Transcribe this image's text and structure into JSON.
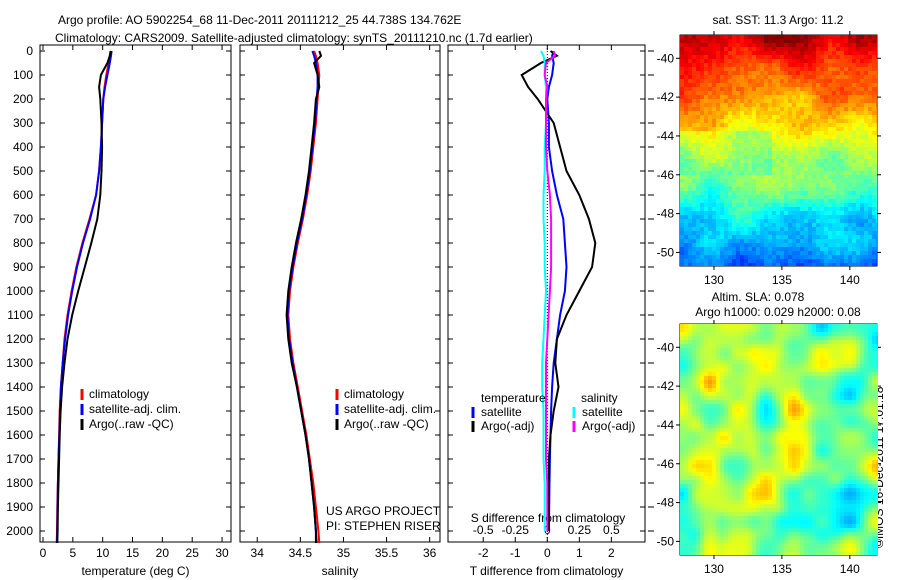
{
  "title": {
    "line1": "Argo profile: AO 5902254_68 11-Dec-2011 20111212_25 44.738S 134.762E",
    "line2": "Climatology: CARS2009. Satellite-adjusted climatology: synTS_20111210.nc (1.7d earlier)"
  },
  "colors": {
    "climatology": "#ff0000",
    "satellite": "#0000ff",
    "argo": "#000000",
    "sal_satellite": "#00ffff",
    "sal_argo": "#ff00ff"
  },
  "chart_data": [
    {
      "type": "line",
      "id": "temperature",
      "xlabel": "temperature (deg C)",
      "ylabel": "",
      "xlim": [
        -0.5,
        31.5
      ],
      "ylim": [
        2060,
        0
      ],
      "xticks": [
        "0",
        "5",
        "10",
        "15",
        "20",
        "25",
        "30"
      ],
      "xtick_values": [
        0,
        5,
        10,
        15,
        20,
        25,
        30
      ],
      "yticks": [
        "0",
        "100",
        "200",
        "300",
        "400",
        "500",
        "600",
        "700",
        "800",
        "900",
        "1000",
        "1100",
        "1200",
        "1300",
        "1400",
        "1500",
        "1600",
        "1700",
        "1800",
        "1900",
        "2000"
      ],
      "legend": [
        "climatology",
        "satellite-adj. clim.",
        "Argo(..raw -QC)"
      ],
      "legend_position": "lower-left",
      "depth": [
        0,
        20,
        50,
        100,
        150,
        200,
        300,
        400,
        500,
        600,
        700,
        800,
        900,
        1000,
        1100,
        1200,
        1300,
        1400,
        1500,
        1600,
        1700,
        1800,
        1900,
        2000,
        2050
      ],
      "series": [
        {
          "name": "climatology",
          "values": [
            11.3,
            11.2,
            11.0,
            10.6,
            10.3,
            10.1,
            9.9,
            9.7,
            9.4,
            8.9,
            7.8,
            6.6,
            5.6,
            4.8,
            4.1,
            3.6,
            3.3,
            3.0,
            2.8,
            2.7,
            2.6,
            2.5,
            2.4,
            2.35,
            2.3
          ]
        },
        {
          "name": "satellite-adj. clim.",
          "values": [
            11.5,
            11.4,
            11.2,
            10.8,
            10.4,
            10.1,
            9.9,
            9.7,
            9.4,
            8.9,
            7.9,
            6.7,
            5.7,
            4.9,
            4.2,
            3.7,
            3.3,
            3.0,
            2.85,
            2.75,
            2.6,
            2.5,
            2.45,
            2.4,
            2.35
          ]
        },
        {
          "name": "Argo(..raw -QC)",
          "values": [
            11.4,
            11.2,
            10.8,
            9.7,
            9.4,
            9.6,
            9.8,
            9.9,
            9.8,
            9.6,
            9.1,
            8.1,
            7.0,
            5.9,
            4.9,
            4.1,
            3.6,
            3.2,
            2.95,
            2.8,
            2.7,
            2.6,
            2.5,
            2.45,
            2.4
          ]
        }
      ]
    },
    {
      "type": "line",
      "id": "salinity",
      "xlabel": "salinity",
      "xlim": [
        33.8,
        36.12
      ],
      "ylim": [
        2060,
        0
      ],
      "xticks": [
        "34",
        "34.5",
        "35",
        "35.5",
        "36"
      ],
      "xtick_values": [
        34,
        34.5,
        35,
        35.5,
        36
      ],
      "legend": [
        "climatology",
        "satellite-adj. clim.",
        "Argo(..raw -QC)"
      ],
      "legend_position": "lower-right",
      "annotation": [
        "US ARGO PROJECT",
        "PI: STEPHEN RISER"
      ],
      "depth": [
        0,
        20,
        50,
        100,
        150,
        200,
        300,
        400,
        500,
        600,
        700,
        800,
        900,
        1000,
        1100,
        1200,
        1300,
        1400,
        1500,
        1600,
        1700,
        1800,
        1900,
        2000,
        2050
      ],
      "series": [
        {
          "name": "climatology",
          "values": [
            34.66,
            34.68,
            34.7,
            34.72,
            34.71,
            34.7,
            34.68,
            34.65,
            34.62,
            34.58,
            34.53,
            34.47,
            34.42,
            34.38,
            34.36,
            34.38,
            34.42,
            34.47,
            34.52,
            34.57,
            34.61,
            34.65,
            34.68,
            34.71,
            34.72
          ]
        },
        {
          "name": "satellite-adj. clim.",
          "values": [
            34.64,
            34.66,
            34.68,
            34.7,
            34.7,
            34.69,
            34.67,
            34.64,
            34.61,
            34.57,
            34.52,
            34.46,
            34.41,
            34.37,
            34.35,
            34.37,
            34.41,
            34.46,
            34.51,
            34.56,
            34.6,
            34.63,
            34.66,
            34.68,
            34.69
          ]
        },
        {
          "name": "Argo(..raw -QC)",
          "values": [
            34.72,
            34.74,
            34.66,
            34.7,
            34.72,
            34.68,
            34.66,
            34.63,
            34.6,
            34.56,
            34.51,
            34.45,
            34.4,
            34.36,
            34.34,
            34.36,
            34.4,
            34.46,
            34.51,
            34.56,
            34.6,
            34.63,
            34.66,
            34.68,
            34.68
          ]
        }
      ]
    },
    {
      "type": "line",
      "id": "difference",
      "xlabel": "T difference from climatology",
      "xlabel_top": "S difference from climatology",
      "xlim": [
        -3.1,
        3.05
      ],
      "xticks": [
        "-2",
        "-1",
        "0",
        "1",
        "2"
      ],
      "xtick_values": [
        -2,
        -1,
        0,
        1,
        2
      ],
      "xticks_top": [
        "-0.5",
        "-0.25",
        "0",
        "0.25",
        "0.5"
      ],
      "xtick_top_values": [
        -0.5,
        -0.25,
        0,
        0.25,
        0.5
      ],
      "ylim": [
        2060,
        0
      ],
      "legend_headers": [
        "temperature",
        "salinity"
      ],
      "legend": [
        "satellite",
        "Argo(-adj)",
        "satellite",
        "Argo(-adj)"
      ],
      "legend_position": "lower-center",
      "depth": [
        0,
        20,
        50,
        100,
        150,
        200,
        300,
        400,
        500,
        600,
        700,
        800,
        900,
        1000,
        1100,
        1200,
        1300,
        1400,
        1500,
        1600,
        1700,
        1800,
        1900,
        2000
      ],
      "series": [
        {
          "name": "T satellite",
          "axis": "T",
          "values": [
            0.2,
            0.15,
            0.2,
            0.15,
            0.05,
            0.0,
            0.05,
            0.05,
            0.15,
            0.3,
            0.5,
            0.55,
            0.6,
            0.55,
            0.4,
            0.3,
            0.2,
            0.15,
            0.12,
            0.1,
            0.08,
            0.07,
            0.06,
            0.05
          ]
        },
        {
          "name": "T Argo(-adj)",
          "axis": "T",
          "values": [
            0.1,
            0.3,
            -0.2,
            -0.8,
            -0.6,
            -0.3,
            0.2,
            0.4,
            0.6,
            1.0,
            1.3,
            1.5,
            1.4,
            1.0,
            0.6,
            0.3,
            0.25,
            0.35,
            0.2,
            0.1,
            0.05,
            0.05,
            0.05,
            0.05
          ]
        },
        {
          "name": "S satellite",
          "axis": "S",
          "values": [
            -0.05,
            -0.03,
            -0.02,
            -0.02,
            -0.01,
            -0.01,
            -0.01,
            -0.02,
            -0.02,
            -0.03,
            -0.03,
            -0.02,
            -0.02,
            -0.01,
            -0.02,
            -0.03,
            -0.04,
            -0.04,
            -0.03,
            -0.03,
            -0.03,
            -0.02,
            -0.02,
            -0.02
          ]
        },
        {
          "name": "S Argo(-adj)",
          "axis": "S",
          "values": [
            0.05,
            0.06,
            -0.01,
            -0.02,
            0.0,
            -0.01,
            -0.01,
            -0.01,
            0.0,
            0.02,
            0.03,
            0.03,
            0.03,
            0.02,
            0.01,
            0.0,
            -0.01,
            -0.01,
            -0.01,
            -0.01,
            -0.01,
            0.0,
            0.0,
            0.0
          ]
        }
      ]
    },
    {
      "type": "heatmap",
      "id": "sst-map",
      "title": "sat. SST: 11.3 Argo: 11.2",
      "xlim": [
        127.5,
        142
      ],
      "ylim": [
        -50.7,
        -38.8
      ],
      "xticks": [
        "130",
        "135",
        "140"
      ],
      "xtick_values": [
        130,
        135,
        140
      ],
      "yticks": [
        "-40",
        "-42",
        "-44",
        "-46",
        "-48",
        "-50"
      ],
      "ytick_values": [
        -40,
        -42,
        -44,
        -46,
        -48,
        -50
      ],
      "marker": {
        "lon": 134.762,
        "lat": -44.738
      }
    },
    {
      "type": "heatmap",
      "id": "sla-map",
      "title": "Altim. SLA: 0.078",
      "subtitle": "Argo h1000: 0.029 h2000: 0.08",
      "xlim": [
        127.5,
        142
      ],
      "ylim": [
        -50.7,
        -38.8
      ],
      "xticks": [
        "130",
        "135",
        "140"
      ],
      "xtick_values": [
        130,
        135,
        140
      ],
      "yticks": [
        "-40",
        "-42",
        "-44",
        "-46",
        "-48",
        "-50"
      ],
      "ytick_values": [
        -40,
        -42,
        -44,
        -46,
        -48,
        -50
      ],
      "marker": {
        "lon": 134.762,
        "lat": -44.738
      }
    }
  ],
  "credit": "©IMOS 16-Dec-2011 17:01:18"
}
